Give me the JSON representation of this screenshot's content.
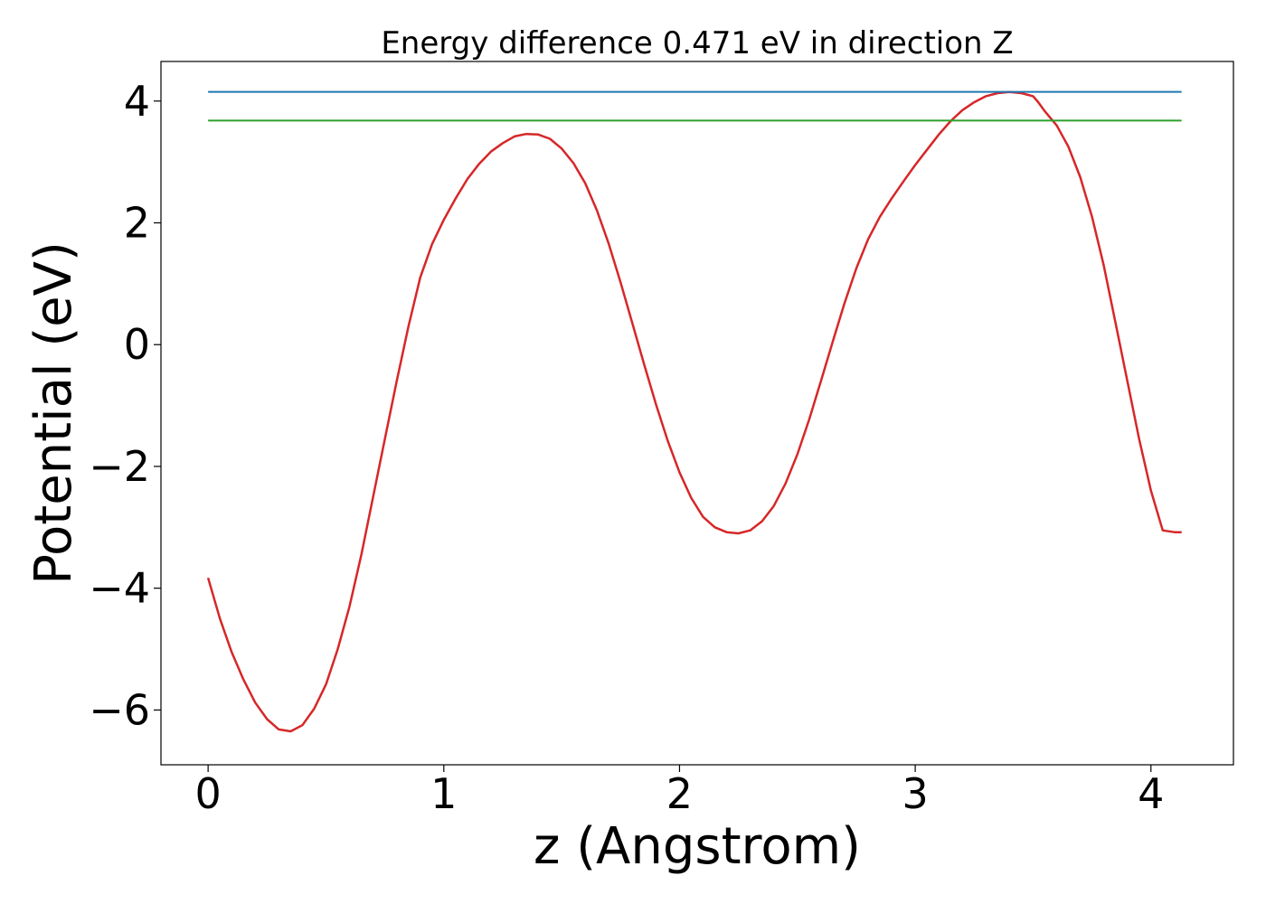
{
  "chart_data": {
    "type": "line",
    "title": "Energy difference 0.471 eV in direction Z",
    "xlabel": "z (Angstrom)",
    "ylabel": "Potential (eV)",
    "xlim": [
      -0.2,
      4.35
    ],
    "ylim": [
      -6.9,
      4.65
    ],
    "xticks": [
      0,
      1,
      2,
      3,
      4
    ],
    "yticks": [
      -6,
      -4,
      -2,
      0,
      2,
      4
    ],
    "xtick_labels": [
      "0",
      "1",
      "2",
      "3",
      "4"
    ],
    "ytick_labels": [
      "−6",
      "−4",
      "−2",
      "0",
      "2",
      "4"
    ],
    "grid": false,
    "series": [
      {
        "kind": "curve",
        "color": "#d62728",
        "x": [
          0,
          0.05,
          0.1,
          0.15,
          0.2,
          0.25,
          0.3,
          0.35,
          0.4,
          0.45,
          0.5,
          0.55,
          0.6,
          0.65,
          0.7,
          0.75,
          0.8,
          0.85,
          0.9,
          0.95,
          1.0,
          1.05,
          1.1,
          1.15,
          1.2,
          1.25,
          1.3,
          1.35,
          1.4,
          1.45,
          1.5,
          1.55,
          1.6,
          1.65,
          1.7,
          1.75,
          1.8,
          1.85,
          1.9,
          1.95,
          2.0,
          2.05,
          2.1,
          2.15,
          2.2,
          2.25,
          2.3,
          2.35,
          2.4,
          2.45,
          2.5,
          2.55,
          2.6,
          2.65,
          2.7,
          2.75,
          2.8,
          2.85,
          2.9,
          2.95,
          3.0,
          3.05,
          3.1,
          3.15,
          3.2,
          3.25,
          3.3,
          3.35,
          3.4,
          3.45,
          3.5,
          3.52,
          3.55,
          3.6,
          3.65,
          3.7,
          3.75,
          3.8,
          3.85,
          3.9,
          3.95,
          4.0,
          4.05,
          4.1,
          4.13
        ],
        "y": [
          -3.83,
          -4.5,
          -5.05,
          -5.5,
          -5.88,
          -6.15,
          -6.32,
          -6.35,
          -6.25,
          -5.98,
          -5.58,
          -5.0,
          -4.3,
          -3.45,
          -2.5,
          -1.55,
          -0.6,
          0.3,
          1.1,
          1.65,
          2.05,
          2.4,
          2.72,
          2.97,
          3.17,
          3.31,
          3.42,
          3.46,
          3.45,
          3.38,
          3.22,
          2.98,
          2.65,
          2.2,
          1.65,
          1.02,
          0.35,
          -0.33,
          -0.98,
          -1.58,
          -2.1,
          -2.52,
          -2.83,
          -3.0,
          -3.08,
          -3.1,
          -3.05,
          -2.9,
          -2.65,
          -2.28,
          -1.8,
          -1.23,
          -0.6,
          0.05,
          0.68,
          1.25,
          1.73,
          2.1,
          2.4,
          2.68,
          2.95,
          3.2,
          3.45,
          3.67,
          3.85,
          3.98,
          4.08,
          4.13,
          4.15,
          4.13,
          4.08,
          3.99,
          3.83,
          3.6,
          3.25,
          2.75,
          2.1,
          1.3,
          0.35,
          -0.6,
          -1.55,
          -2.4,
          -3.05,
          -3.08,
          -3.08
        ]
      },
      {
        "kind": "hline",
        "color": "#1f77b4",
        "y": 4.15,
        "x_range": [
          0,
          4.13
        ]
      },
      {
        "kind": "hline",
        "color": "#2ca02c",
        "y": 3.68,
        "x_range": [
          0,
          4.13
        ]
      }
    ]
  }
}
